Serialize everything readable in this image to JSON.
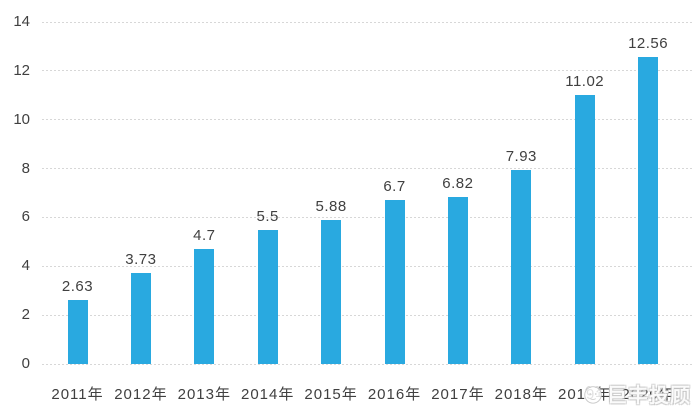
{
  "chart_data": {
    "type": "bar",
    "title": "",
    "xlabel": "",
    "ylabel": "",
    "categories": [
      "2011年",
      "2012年",
      "2013年",
      "2014年",
      "2015年",
      "2016年",
      "2017年",
      "2018年",
      "2019年",
      "2020年"
    ],
    "values": [
      2.63,
      3.73,
      4.7,
      5.5,
      5.88,
      6.7,
      6.82,
      7.93,
      11.02,
      12.56
    ],
    "value_labels": [
      "2.63",
      "3.73",
      "4.7",
      "5.5",
      "5.88",
      "6.7",
      "6.82",
      "7.93",
      "11.02",
      "12.56"
    ],
    "ylim": [
      0,
      14
    ],
    "yticks": [
      0,
      2,
      4,
      6,
      8,
      10,
      12,
      14
    ],
    "grid": true,
    "legend": "none",
    "bar_color": "#29A9E0",
    "text_color": "#404040",
    "gridline_color": "#D7D7D7"
  },
  "watermark": {
    "text": "巨丰投顾",
    "logo": "bull-logo-icon"
  }
}
